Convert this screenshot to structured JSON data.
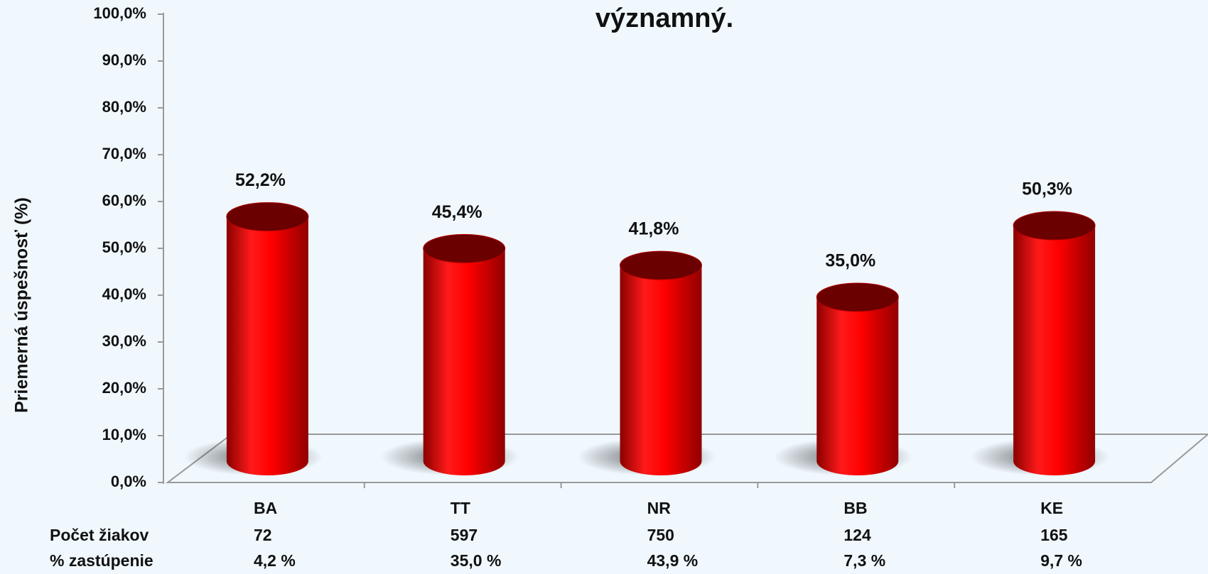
{
  "chart_data": {
    "type": "bar",
    "title": "významný.",
    "y_label": "Priemerná úspešnosť (%)",
    "categories": [
      "BA",
      "TT",
      "NR",
      "BB",
      "KE"
    ],
    "values": [
      52.2,
      45.4,
      41.8,
      35.0,
      50.3
    ],
    "value_labels": [
      "52,2%",
      "45,4%",
      "41,8%",
      "35,0%",
      "50,3%"
    ],
    "color": "#ff0000",
    "ylim": [
      0,
      100
    ],
    "yticks": [
      {
        "value": 0,
        "label": "0,0%"
      },
      {
        "value": 10,
        "label": "10,0%"
      },
      {
        "value": 20,
        "label": "20,0%"
      },
      {
        "value": 30,
        "label": "30,0%"
      },
      {
        "value": 40,
        "label": "40,0%"
      },
      {
        "value": 50,
        "label": "50,0%"
      },
      {
        "value": 60,
        "label": "60,0%"
      },
      {
        "value": 70,
        "label": "70,0%"
      },
      {
        "value": 80,
        "label": "80,0%"
      },
      {
        "value": 90,
        "label": "90,0%"
      },
      {
        "value": 100,
        "label": "100,0%"
      }
    ],
    "table": {
      "rows": [
        {
          "label": "Počet žiakov",
          "values": [
            72,
            597,
            750,
            124,
            165
          ]
        },
        {
          "label": "% zastúpenie",
          "values": [
            "4,2 %",
            "35,0 %",
            "43,9 %",
            "7,3 %",
            "9,7 %"
          ]
        }
      ]
    }
  }
}
